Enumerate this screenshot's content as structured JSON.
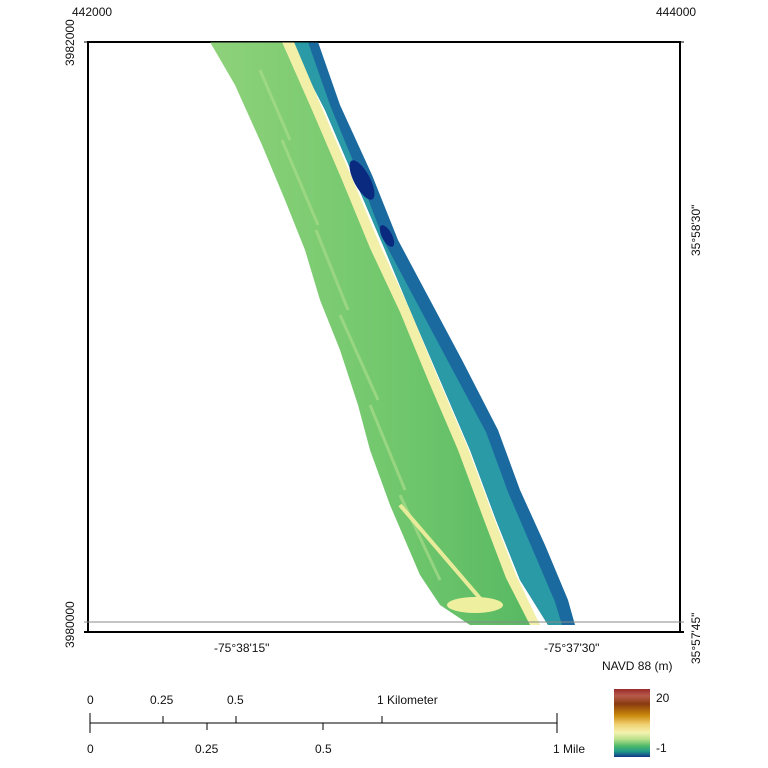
{
  "map": {
    "grid_top": {
      "left": "442000",
      "right": "444000"
    },
    "grid_left": {
      "top": "3982000",
      "bottom": "3980000"
    },
    "lon_bottom": {
      "left": "-75°38'15\"",
      "right": "-75°37'30\""
    },
    "lat_right": {
      "top": "35°58'30\"",
      "bottom": "35°57'45\""
    }
  },
  "legend": {
    "title": "NAVD 88 (m)",
    "max": "20",
    "min": "-1",
    "colors": [
      "#9a2a2a",
      "#8a3a10",
      "#c8860a",
      "#f0d070",
      "#f4f2b0",
      "#b8e08a",
      "#4db86a",
      "#1f9a8a",
      "#14348a"
    ]
  },
  "scale": {
    "km_labels": [
      "0",
      "0.25",
      "0.5",
      "1 Kilometer"
    ],
    "mile_labels": [
      "0",
      "0.25",
      "0.5",
      "1 Mile"
    ]
  }
}
